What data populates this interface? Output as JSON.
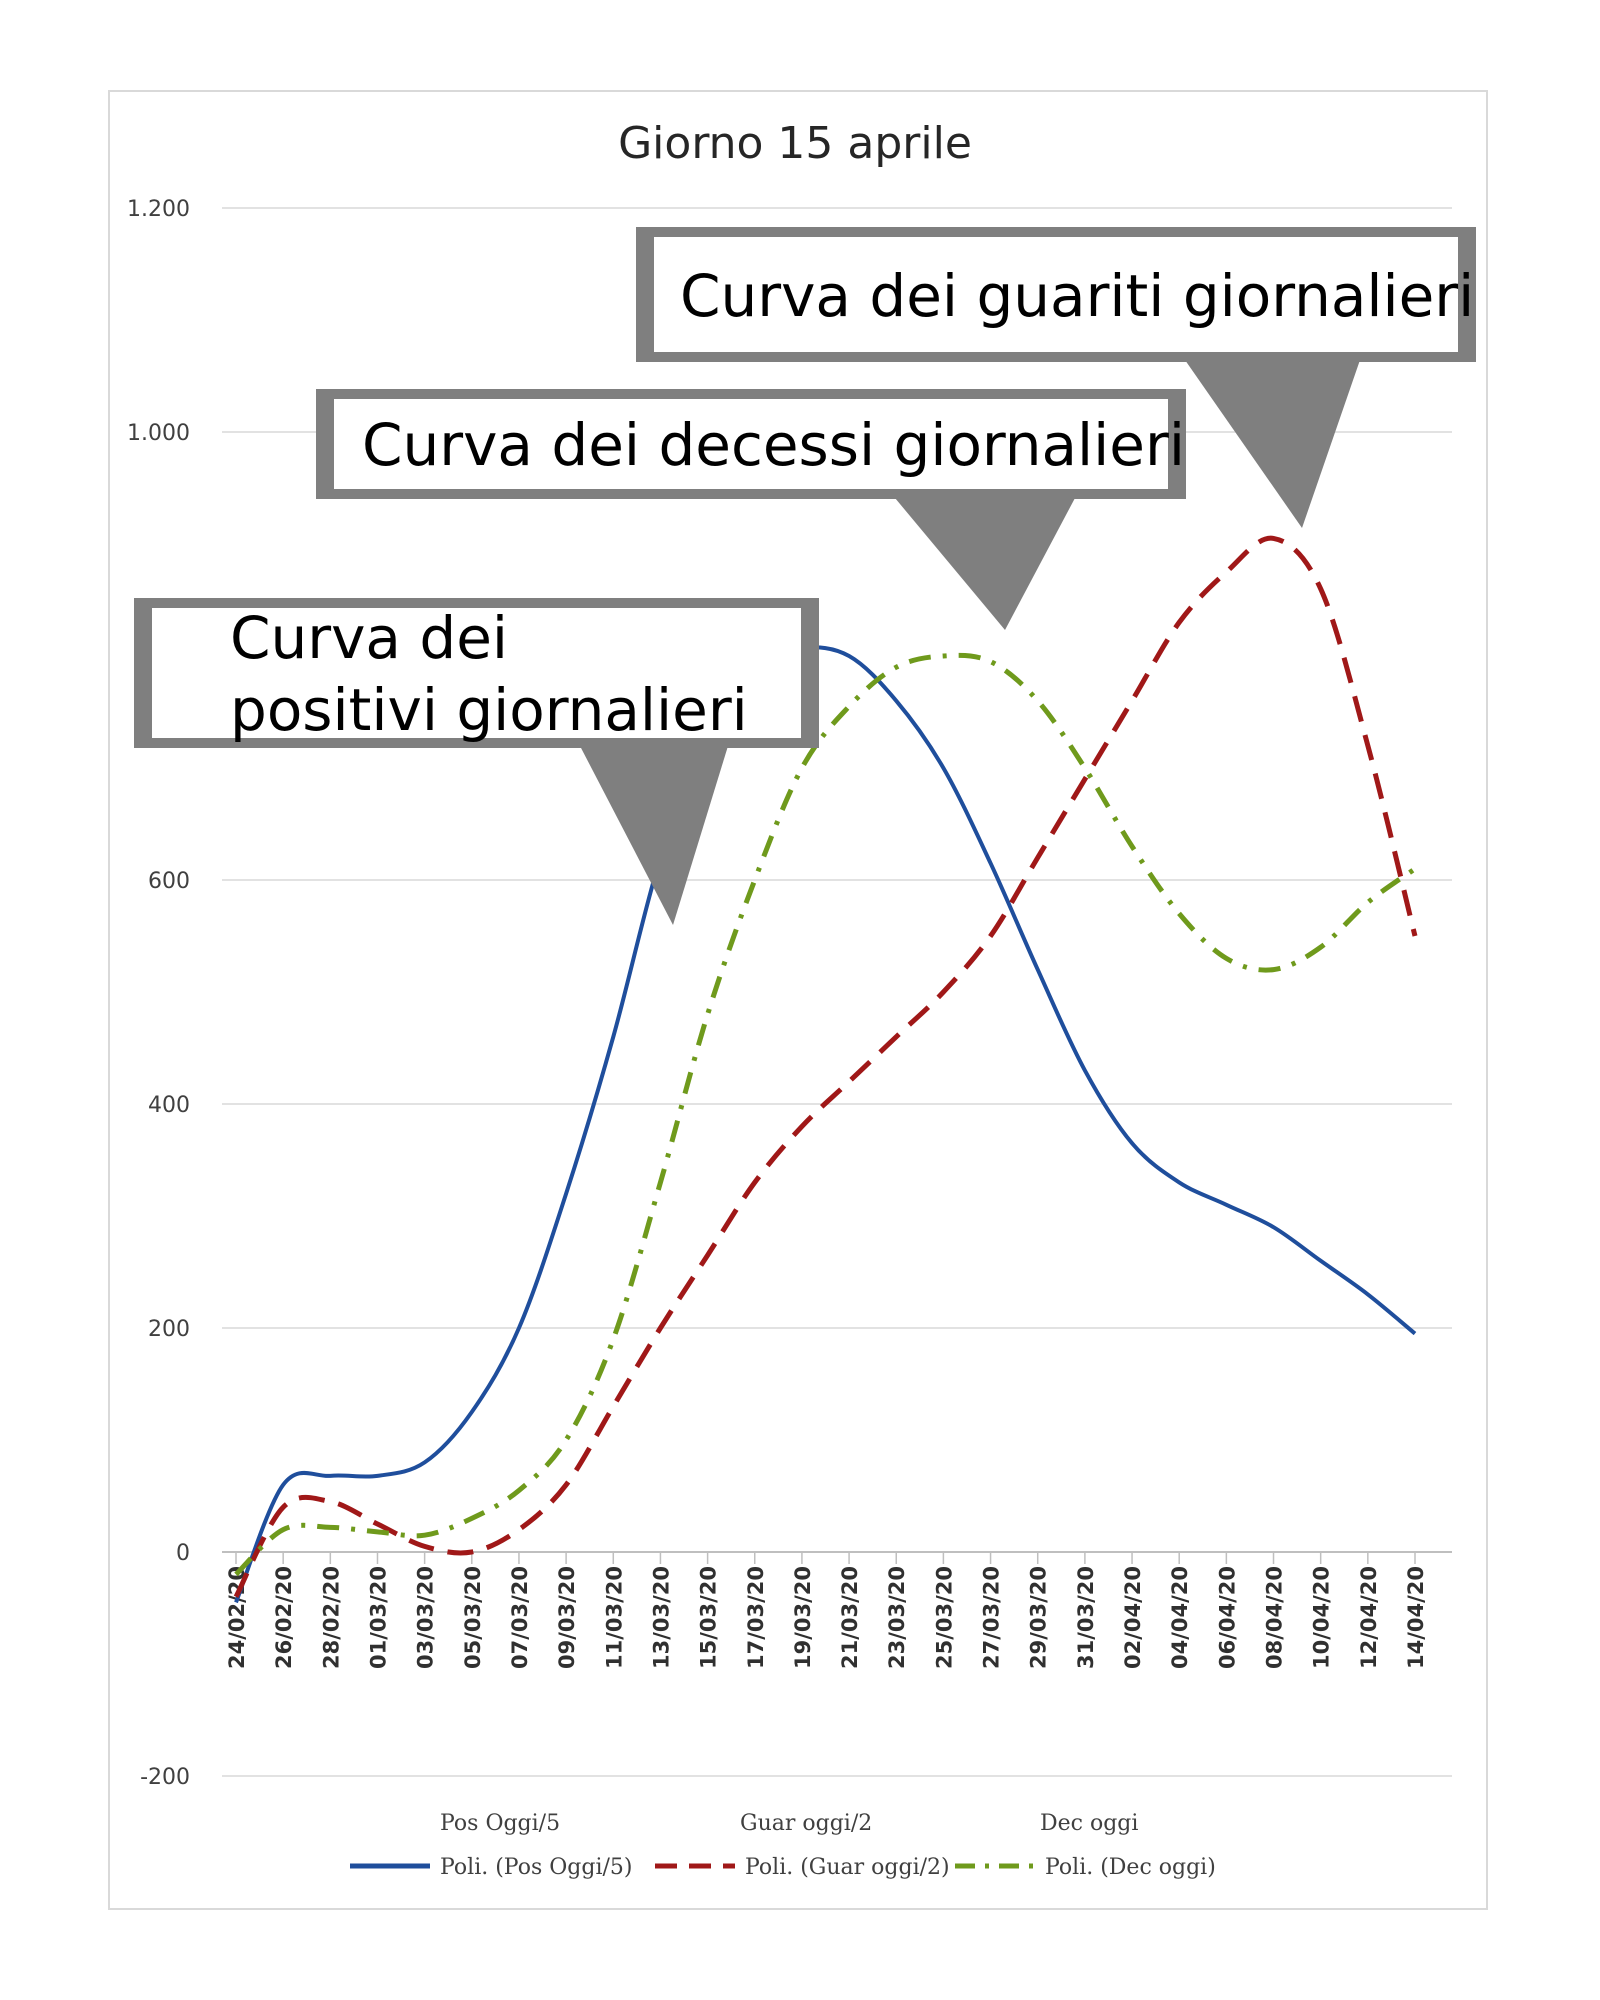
{
  "chart_data": {
    "type": "line",
    "title": "Giorno 15 aprile",
    "ylim": [
      -200,
      1200
    ],
    "yticks": [
      -200,
      0,
      200,
      400,
      600,
      1000,
      1200
    ],
    "ytick_labels": [
      "-200",
      "0",
      "200",
      "400",
      "600",
      "1.000",
      "1.200"
    ],
    "grid": true,
    "categories": [
      "24/02/20",
      "26/02/20",
      "28/02/20",
      "01/03/20",
      "03/03/20",
      "05/03/20",
      "07/03/20",
      "09/03/20",
      "11/03/20",
      "13/03/20",
      "15/03/20",
      "17/03/20",
      "19/03/20",
      "21/03/20",
      "23/03/20",
      "25/03/20",
      "27/03/20",
      "29/03/20",
      "31/03/20",
      "02/04/20",
      "04/04/20",
      "06/04/20",
      "08/04/20",
      "10/04/20",
      "12/04/20",
      "14/04/20"
    ],
    "series": [
      {
        "name": "Poli. (Pos Oggi/5)",
        "color": "#1f4e9c",
        "style": "solid",
        "values": [
          -45,
          60,
          68,
          68,
          80,
          125,
          200,
          320,
          460,
          620,
          730,
          790,
          807,
          800,
          760,
          700,
          615,
          520,
          430,
          365,
          330,
          310,
          290,
          260,
          230,
          195
        ]
      },
      {
        "name": "Poli. (Guar oggi/2)",
        "color": "#a01818",
        "style": "dashed",
        "values": [
          -40,
          40,
          45,
          25,
          5,
          0,
          20,
          60,
          130,
          200,
          265,
          330,
          380,
          420,
          460,
          500,
          550,
          620,
          690,
          760,
          830,
          875,
          905,
          860,
          720,
          550
        ]
      },
      {
        "name": "Poli. (Dec oggi)",
        "color": "#6f9a1c",
        "style": "dashdot",
        "values": [
          -20,
          20,
          22,
          18,
          15,
          30,
          55,
          100,
          190,
          330,
          480,
          600,
          700,
          755,
          790,
          800,
          795,
          760,
          700,
          630,
          570,
          530,
          520,
          540,
          580,
          610
        ]
      }
    ],
    "legend_top": [
      "Pos Oggi/5",
      "Guar oggi/2",
      "Dec oggi"
    ],
    "legend_bottom": [
      "Poli. (Pos Oggi/5)",
      "Poli. (Guar oggi/2)",
      "Poli. (Dec oggi)"
    ],
    "legend_position": "bottom",
    "annotations": [
      {
        "lines": [
          "Curva dei guariti giornalieri"
        ]
      },
      {
        "lines": [
          "Curva dei decessi giornalieri"
        ]
      },
      {
        "lines": [
          "Curva dei",
          "positivi giornalieri"
        ]
      }
    ]
  }
}
